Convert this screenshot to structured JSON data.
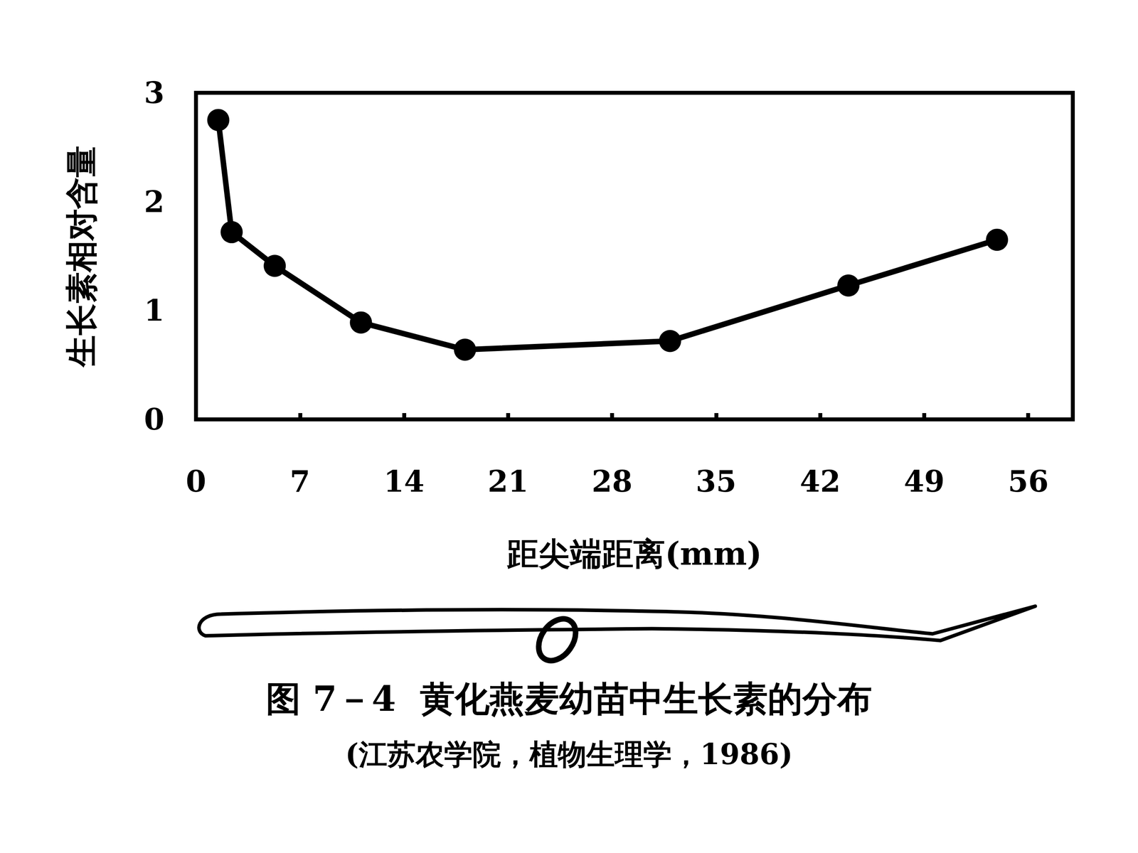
{
  "chart_data": {
    "type": "line",
    "title": "图 7－4  黄化燕麦幼苗中生长素的分布",
    "subtitle": "(江苏农学院，植物生理学，1986)",
    "x_label": "距尖端距离(mm)",
    "y_label": "生长素相对含量",
    "x": [
      1.5,
      2.4,
      5.3,
      11.1,
      18.1,
      31.9,
      43.9,
      53.9
    ],
    "values": [
      2.75,
      1.72,
      1.41,
      0.89,
      0.64,
      0.72,
      1.23,
      1.65
    ],
    "color": "#000000",
    "marker": "circle",
    "line_style": "solid",
    "xlim": [
      0,
      59
    ],
    "xticks": [
      0,
      7,
      14,
      21,
      28,
      35,
      42,
      49,
      56
    ],
    "ylim": [
      0,
      3
    ],
    "yticks": [
      0,
      1,
      2,
      3
    ],
    "grid": false
  }
}
